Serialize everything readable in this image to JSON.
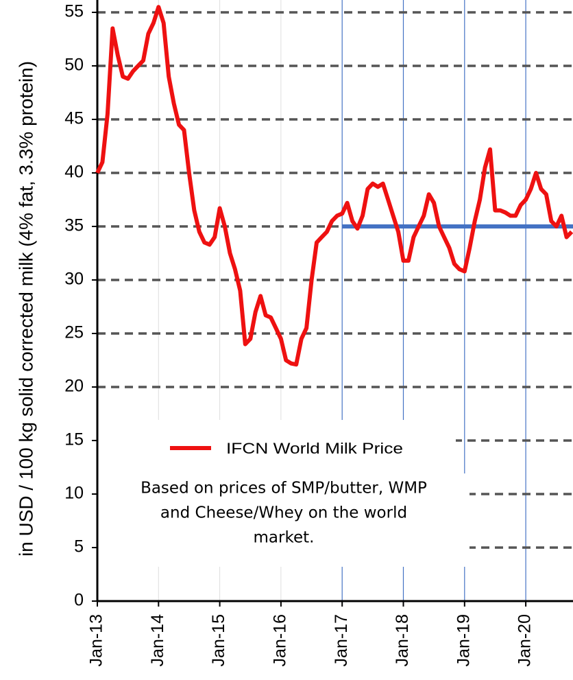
{
  "chart_data": {
    "type": "line",
    "y_label": "in USD / 100 kg solid corrected milk (4% fat, 3.3% protein)",
    "categories": [
      "Jan-13",
      null,
      null,
      null,
      null,
      null,
      null,
      null,
      null,
      null,
      null,
      null,
      "Jan-14",
      null,
      null,
      null,
      null,
      null,
      null,
      null,
      null,
      null,
      null,
      null,
      "Jan-15",
      null,
      null,
      null,
      null,
      null,
      null,
      null,
      null,
      null,
      null,
      null,
      "Jan-16",
      null,
      null,
      null,
      null,
      null,
      null,
      null,
      null,
      null,
      null,
      null,
      "Jan-17",
      null,
      null,
      null,
      null,
      null,
      null,
      null,
      null,
      null,
      null,
      null,
      "Jan-18",
      null,
      null,
      null,
      null,
      null,
      null,
      null,
      null,
      null,
      null,
      null,
      "Jan-19",
      null,
      null,
      null,
      null,
      null,
      null,
      null,
      null,
      null,
      null,
      null,
      "Jan-20",
      null,
      null,
      null,
      null,
      null,
      null,
      null,
      null,
      null
    ],
    "series": [
      {
        "name": "IFCN World Milk Price",
        "color": "#ee1111",
        "values": [
          40,
          41,
          45.5,
          53.5,
          51,
          49,
          48.8,
          49.5,
          50,
          50.5,
          53,
          54,
          55.5,
          54,
          49,
          46.5,
          44.5,
          44,
          40,
          36.5,
          34.5,
          33.5,
          33.3,
          34,
          36.7,
          35,
          32.5,
          31,
          29,
          24,
          24.5,
          27,
          28.5,
          26.7,
          26.5,
          25.5,
          24.5,
          22.5,
          22.2,
          22.1,
          24.5,
          25.5,
          30,
          33.5,
          34,
          34.5,
          35.5,
          36,
          36.2,
          37.2,
          35.5,
          34.8,
          36,
          38.5,
          39,
          38.7,
          39,
          37.5,
          36,
          34.5,
          31.8,
          31.8,
          34,
          35,
          36,
          38,
          37.2,
          35,
          34,
          33,
          31.5,
          31,
          30.8,
          33,
          35.5,
          37.5,
          40.5,
          42.2,
          36.5,
          36.5,
          36.3,
          36,
          36,
          37,
          37.5,
          38.5,
          40,
          38.5,
          38,
          35.5,
          35,
          36,
          34,
          34.5
        ]
      }
    ],
    "reference_line": {
      "value": 35,
      "color": "#4472c4",
      "start": "Jan-17"
    },
    "annotation": [
      "Based on prices of SMP/butter, WMP",
      "and Cheese/Whey on the world",
      "market."
    ],
    "ylim": [
      0,
      55
    ],
    "yticks": [
      0,
      5,
      10,
      15,
      20,
      25,
      30,
      35,
      40,
      45,
      50,
      55
    ],
    "grid": true
  }
}
